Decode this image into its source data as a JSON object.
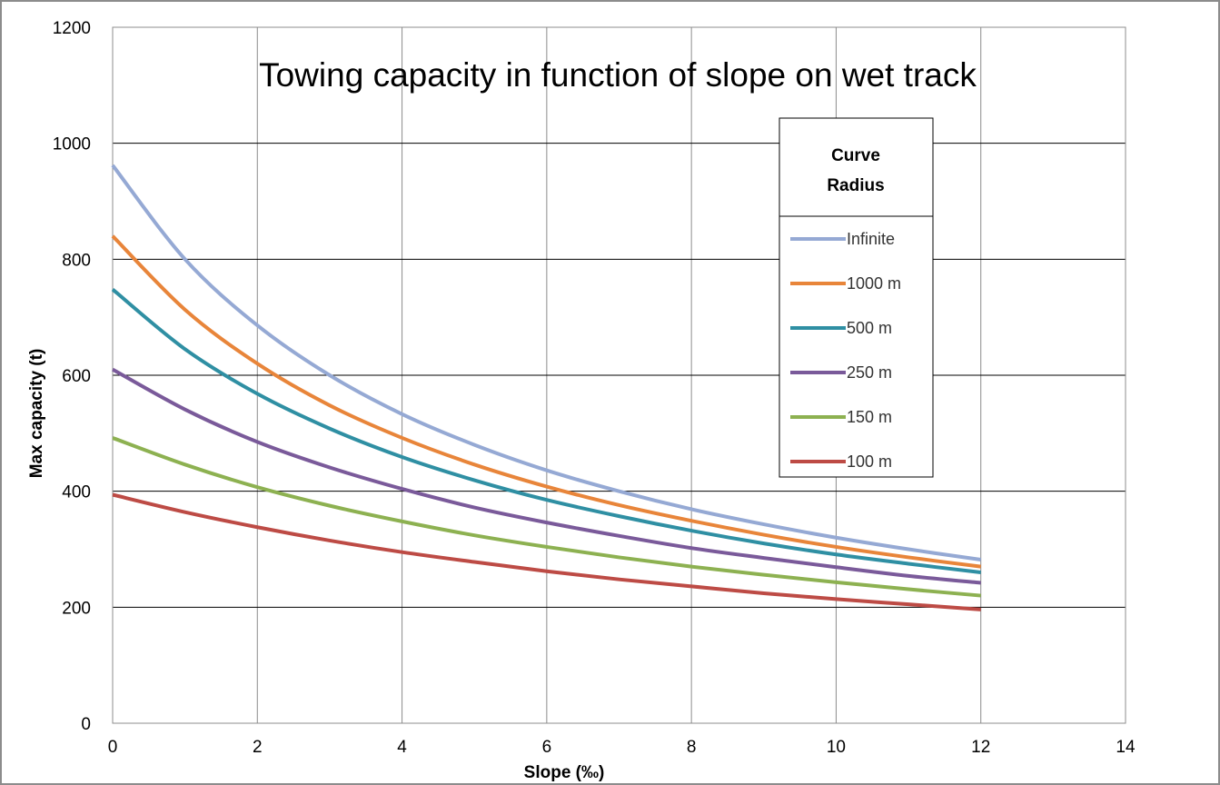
{
  "chart_data": {
    "type": "line",
    "title": "Towing capacity in function of slope on wet track",
    "xlabel": "Slope (‰)",
    "ylabel": "Max capacity (t)",
    "xlim": [
      0,
      14
    ],
    "ylim": [
      0,
      1200
    ],
    "xticks": [
      "0",
      "2",
      "4",
      "6",
      "8",
      "10",
      "12",
      "14"
    ],
    "yticks": [
      "0",
      "200",
      "400",
      "600",
      "800",
      "1000",
      "1200"
    ],
    "grid": true,
    "legend": {
      "title_line1": "Curve",
      "title_line2": "Radius",
      "placement": "top-right"
    },
    "x": [
      0,
      1,
      2,
      3,
      4,
      5,
      6,
      7,
      8,
      9,
      10,
      11,
      12
    ],
    "series": [
      {
        "name": "Infinite",
        "color": "#95a9d4",
        "values": [
          962,
          800,
          686,
          600,
          533,
          480,
          436,
          400,
          369,
          343,
          320,
          300,
          282
        ]
      },
      {
        "name": "1000 m",
        "color": "#e8853a",
        "values": [
          840,
          713,
          620,
          548,
          492,
          446,
          408,
          376,
          349,
          325,
          304,
          286,
          270
        ]
      },
      {
        "name": "500 m",
        "color": "#2f8fa3",
        "values": [
          748,
          645,
          568,
          508,
          459,
          419,
          385,
          357,
          332,
          310,
          291,
          275,
          260
        ]
      },
      {
        "name": "250 m",
        "color": "#7a5a9a",
        "values": [
          610,
          541,
          485,
          441,
          404,
          372,
          346,
          323,
          302,
          285,
          269,
          254,
          242
        ]
      },
      {
        "name": "150 m",
        "color": "#8db151",
        "values": [
          492,
          446,
          407,
          375,
          348,
          324,
          304,
          286,
          270,
          256,
          243,
          231,
          220
        ]
      },
      {
        "name": "100 m",
        "color": "#bd4b45",
        "values": [
          394,
          364,
          338,
          315,
          295,
          278,
          262,
          248,
          236,
          224,
          214,
          205,
          196
        ]
      }
    ]
  }
}
